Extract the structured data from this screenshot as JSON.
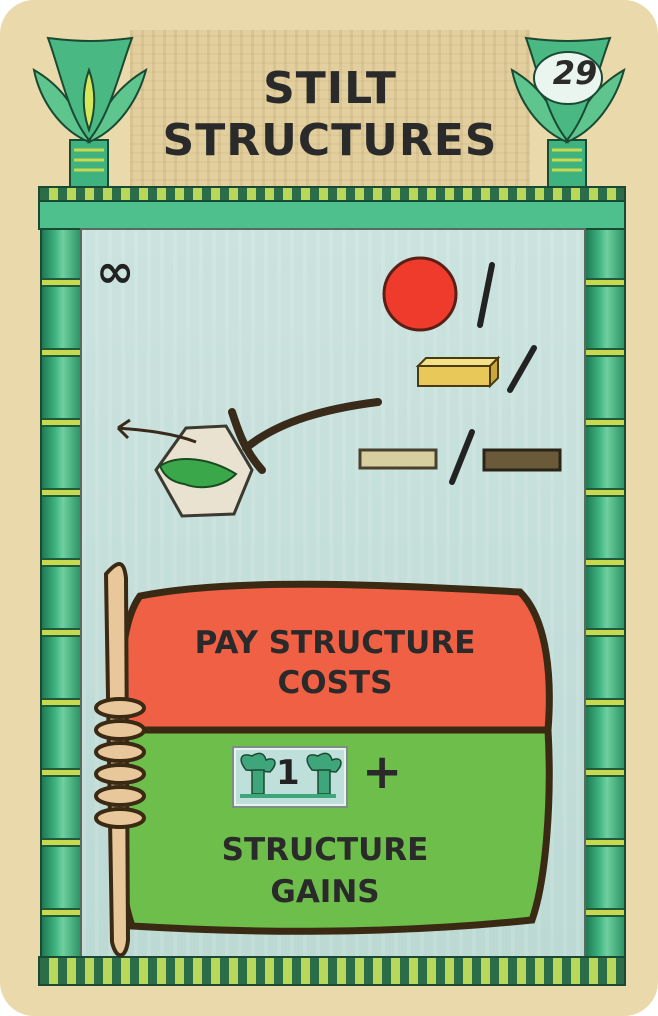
{
  "card": {
    "title_line1": "STILT",
    "title_line2": "STRUCTURES",
    "number": "29",
    "duration_symbol": "∞",
    "resource_separator": "/",
    "pay_line1": "PAY STRUCTURE",
    "pay_line2": "COSTS",
    "tile_value": "1",
    "plus_sign": "+",
    "gain_line1": "STRUCTURE",
    "gain_line2": "GAINS"
  },
  "icons": {
    "resource_1": "red-disc-icon",
    "resource_2": "gold-bar-icon",
    "resource_3": "light-plank-icon",
    "resource_4": "dark-plank-icon",
    "hex": "crocodile-hex-tile-icon",
    "tile": "lotus-pillar-tile-icon"
  },
  "colors": {
    "card_bg": "#ead9ab",
    "pillar_green": "#3fb37f",
    "pay_red": "#ef6045",
    "gain_green": "#6dbe4a",
    "resource_red": "#ef3b2c",
    "resource_gold": "#e9c85a"
  }
}
